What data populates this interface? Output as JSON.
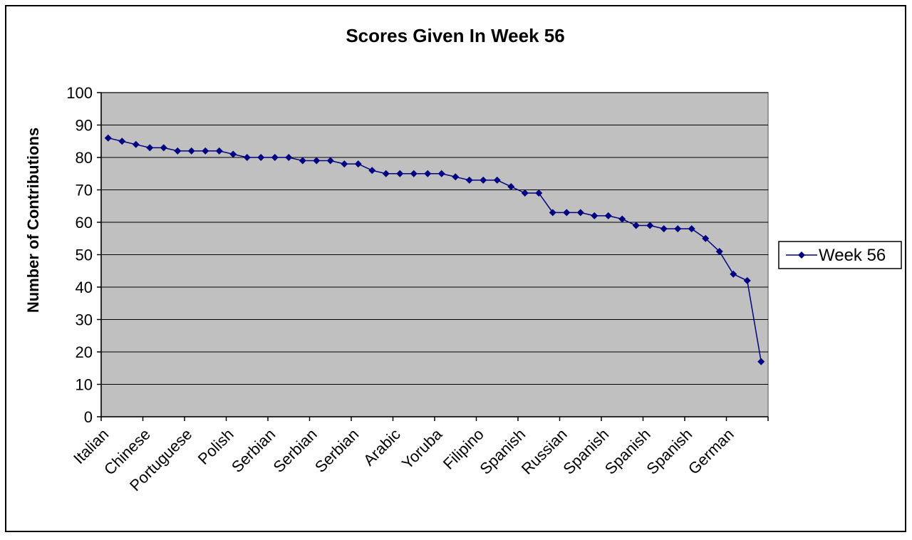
{
  "chart_data": {
    "type": "line",
    "title": "Scores Given In Week 56",
    "ylabel": "Number of Contributions",
    "xlabel": "",
    "ylim": [
      0,
      100
    ],
    "yticks": [
      0,
      10,
      20,
      30,
      40,
      50,
      60,
      70,
      80,
      90,
      100
    ],
    "grid": true,
    "legend_position": "right",
    "colors": {
      "series": "#000080",
      "plot_background": "#c0c0c0",
      "gridline": "#000000"
    },
    "x_tick_labels": [
      {
        "index": 0,
        "label": "Italian"
      },
      {
        "index": 3,
        "label": "Chinese"
      },
      {
        "index": 6,
        "label": "Portuguese"
      },
      {
        "index": 9,
        "label": "Polish"
      },
      {
        "index": 12,
        "label": "Serbian"
      },
      {
        "index": 15,
        "label": "Serbian"
      },
      {
        "index": 18,
        "label": "Serbian"
      },
      {
        "index": 21,
        "label": "Arabic"
      },
      {
        "index": 24,
        "label": "Yoruba"
      },
      {
        "index": 27,
        "label": "Filipino"
      },
      {
        "index": 30,
        "label": "Spanish"
      },
      {
        "index": 33,
        "label": "Russian"
      },
      {
        "index": 36,
        "label": "Spanish"
      },
      {
        "index": 39,
        "label": "Spanish"
      },
      {
        "index": 42,
        "label": "Spanish"
      },
      {
        "index": 45,
        "label": "German"
      }
    ],
    "series": [
      {
        "name": "Week 56",
        "values": [
          86,
          85,
          84,
          83,
          83,
          82,
          82,
          82,
          82,
          81,
          80,
          80,
          80,
          80,
          79,
          79,
          79,
          78,
          78,
          76,
          75,
          75,
          75,
          75,
          75,
          74,
          73,
          73,
          73,
          71,
          69,
          69,
          63,
          63,
          63,
          62,
          62,
          61,
          59,
          59,
          58,
          58,
          58,
          55,
          51,
          44,
          42,
          17
        ]
      }
    ]
  }
}
